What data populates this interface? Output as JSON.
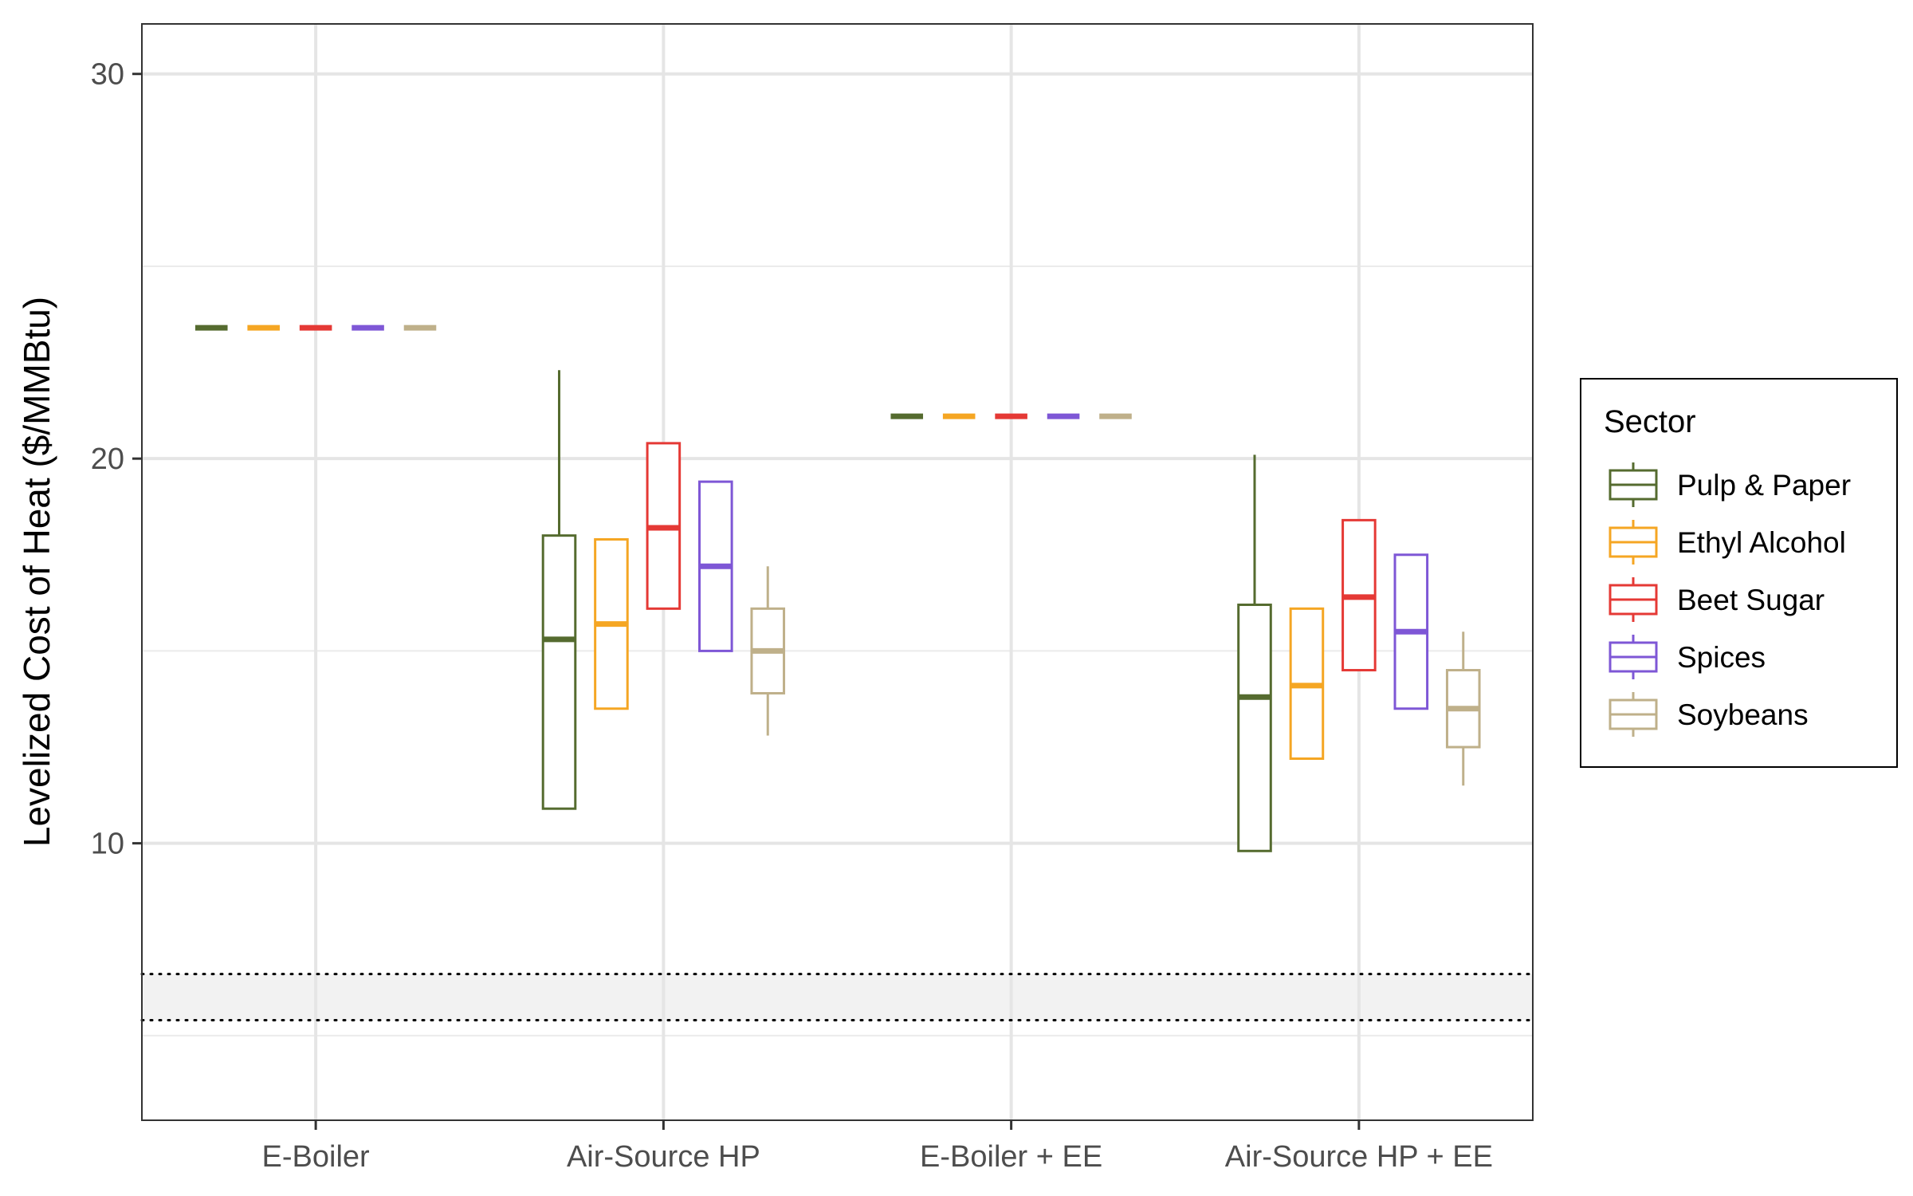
{
  "chart_data": {
    "type": "boxplot",
    "title": "",
    "xlabel": "",
    "ylabel": "Levelized Cost of Heat ($/MMBtu)",
    "ylim": [
      2.8,
      31.3
    ],
    "yticks": [
      10,
      20,
      30
    ],
    "grid": true,
    "legend_position": "right",
    "legend_title": "Sector",
    "categories": [
      "E-Boiler",
      "Air-Source HP",
      "E-Boiler + EE",
      "Air-Source HP + EE"
    ],
    "reference_band": {
      "low": 5.4,
      "high": 6.6,
      "line_style": "dotted"
    },
    "colors": {
      "Pulp & Paper": "#556b2f",
      "Ethyl Alcohol": "#f5a623",
      "Beet Sugar": "#e53935",
      "Spices": "#7e57d6",
      "Soybeans": "#bfb08a"
    },
    "series": [
      {
        "name": "Pulp & Paper",
        "boxes": [
          {
            "min": 23.4,
            "q1": 23.4,
            "median": 23.4,
            "q3": 23.4,
            "max": 23.4
          },
          {
            "min": 10.9,
            "q1": 10.9,
            "median": 15.3,
            "q3": 18.0,
            "max": 22.3
          },
          {
            "min": 21.1,
            "q1": 21.1,
            "median": 21.1,
            "q3": 21.1,
            "max": 21.1
          },
          {
            "min": 9.8,
            "q1": 9.8,
            "median": 13.8,
            "q3": 16.2,
            "max": 20.1
          }
        ]
      },
      {
        "name": "Ethyl Alcohol",
        "boxes": [
          {
            "min": 23.4,
            "q1": 23.4,
            "median": 23.4,
            "q3": 23.4,
            "max": 23.4
          },
          {
            "min": 13.5,
            "q1": 13.5,
            "median": 15.7,
            "q3": 17.9,
            "max": 17.9
          },
          {
            "min": 21.1,
            "q1": 21.1,
            "median": 21.1,
            "q3": 21.1,
            "max": 21.1
          },
          {
            "min": 12.2,
            "q1": 12.2,
            "median": 14.1,
            "q3": 16.1,
            "max": 16.1
          }
        ]
      },
      {
        "name": "Beet Sugar",
        "boxes": [
          {
            "min": 23.4,
            "q1": 23.4,
            "median": 23.4,
            "q3": 23.4,
            "max": 23.4
          },
          {
            "min": 16.1,
            "q1": 16.1,
            "median": 18.2,
            "q3": 20.4,
            "max": 20.4
          },
          {
            "min": 21.1,
            "q1": 21.1,
            "median": 21.1,
            "q3": 21.1,
            "max": 21.1
          },
          {
            "min": 14.5,
            "q1": 14.5,
            "median": 16.4,
            "q3": 18.4,
            "max": 18.4
          }
        ]
      },
      {
        "name": "Spices",
        "boxes": [
          {
            "min": 23.4,
            "q1": 23.4,
            "median": 23.4,
            "q3": 23.4,
            "max": 23.4
          },
          {
            "min": 15.0,
            "q1": 15.0,
            "median": 17.2,
            "q3": 19.4,
            "max": 19.4
          },
          {
            "min": 21.1,
            "q1": 21.1,
            "median": 21.1,
            "q3": 21.1,
            "max": 21.1
          },
          {
            "min": 13.5,
            "q1": 13.5,
            "median": 15.5,
            "q3": 17.5,
            "max": 17.5
          }
        ]
      },
      {
        "name": "Soybeans",
        "boxes": [
          {
            "min": 23.4,
            "q1": 23.4,
            "median": 23.4,
            "q3": 23.4,
            "max": 23.4
          },
          {
            "min": 12.8,
            "q1": 13.9,
            "median": 15.0,
            "q3": 16.1,
            "max": 17.2
          },
          {
            "min": 21.1,
            "q1": 21.1,
            "median": 21.1,
            "q3": 21.1,
            "max": 21.1
          },
          {
            "min": 11.5,
            "q1": 12.5,
            "median": 13.5,
            "q3": 14.5,
            "max": 15.5
          }
        ]
      }
    ]
  }
}
